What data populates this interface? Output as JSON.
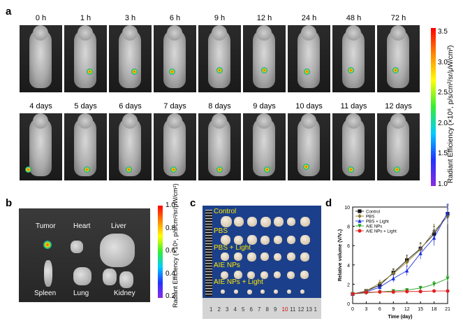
{
  "panels": {
    "a": "a",
    "b": "b",
    "c": "c",
    "d": "d"
  },
  "panel_a": {
    "row1": [
      "0 h",
      "1 h",
      "3 h",
      "6 h",
      "9 h",
      "12 h",
      "24 h",
      "48 h",
      "72 h"
    ],
    "row2": [
      "4 days",
      "5 days",
      "6 days",
      "7 days",
      "8 days",
      "9 days",
      "10 days",
      "11 days",
      "12 days"
    ],
    "colorbar": {
      "label": "Radiant Efficiency (×10⁸, p/s/cm²/sr/μW/cm²)",
      "ticks": [
        "3.5",
        "3.0",
        "2.5",
        "2.0",
        "1.5",
        "1.0"
      ]
    }
  },
  "panel_b": {
    "organs_top": [
      "Tumor",
      "Heart",
      "Liver"
    ],
    "organs_bottom": [
      "Spleen",
      "Lung",
      "Kidney"
    ],
    "colorbar": {
      "label": "Radiant Efficiency (×10⁸, p/s/cm²/sr/μW/cm²)",
      "ticks": [
        "1.0",
        "0.8",
        "0.6",
        "0.4",
        "0.2"
      ]
    }
  },
  "panel_c": {
    "groups": [
      "Control",
      "PBS",
      "PBS + Light",
      "AIE NPs",
      "AIE NPs + Light"
    ],
    "ruler_numbers": [
      "1",
      "2",
      "3",
      "4",
      "5",
      "6",
      "7",
      "8",
      "9",
      "10",
      "11",
      "12",
      "13",
      "1"
    ]
  },
  "chart_data": {
    "type": "line",
    "title": "",
    "xlabel": "Time (day)",
    "ylabel": "Relative volume (V/V₀)",
    "x": [
      0,
      3,
      6,
      9,
      12,
      15,
      18,
      21
    ],
    "xlim": [
      0,
      21
    ],
    "ylim": [
      0,
      10
    ],
    "xticks": [
      "0",
      "3",
      "6",
      "9",
      "12",
      "15",
      "18",
      "21"
    ],
    "yticks": [
      "0",
      "2",
      "4",
      "6",
      "8",
      "10"
    ],
    "legend_position": "top-left",
    "series": [
      {
        "name": "Control",
        "color": "#111111",
        "marker": "square",
        "values": [
          1.0,
          1.3,
          1.9,
          3.2,
          4.5,
          5.7,
          7.2,
          9.3
        ],
        "errors": [
          0.05,
          0.1,
          0.3,
          0.4,
          0.5,
          0.6,
          0.8,
          0.9
        ]
      },
      {
        "name": "PBS",
        "color": "#8a7a2a",
        "marker": "diamond",
        "values": [
          1.0,
          1.3,
          2.1,
          3.1,
          4.3,
          5.6,
          7.5,
          9.0
        ],
        "errors": [
          0.05,
          0.1,
          0.3,
          0.4,
          0.5,
          0.6,
          0.7,
          0.8
        ]
      },
      {
        "name": "PBS + Light",
        "color": "#1a2fe0",
        "marker": "triangle-up",
        "values": [
          1.0,
          1.2,
          1.7,
          2.6,
          3.4,
          5.2,
          6.8,
          9.4
        ],
        "errors": [
          0.05,
          0.1,
          0.3,
          0.4,
          0.5,
          0.6,
          0.8,
          0.9
        ]
      },
      {
        "name": "AIE NPs",
        "color": "#22a020",
        "marker": "triangle-down",
        "values": [
          1.0,
          1.1,
          1.2,
          1.3,
          1.4,
          1.6,
          2.0,
          2.6
        ],
        "errors": [
          0.03,
          0.05,
          0.1,
          0.1,
          0.1,
          0.2,
          0.3,
          0.3
        ]
      },
      {
        "name": "AIE NPs + Light",
        "color": "#e02020",
        "marker": "circle",
        "values": [
          1.0,
          1.15,
          1.2,
          1.2,
          1.25,
          1.25,
          1.3,
          1.3
        ],
        "errors": [
          0.03,
          0.05,
          0.05,
          0.05,
          0.05,
          0.05,
          0.05,
          0.05
        ]
      }
    ]
  }
}
